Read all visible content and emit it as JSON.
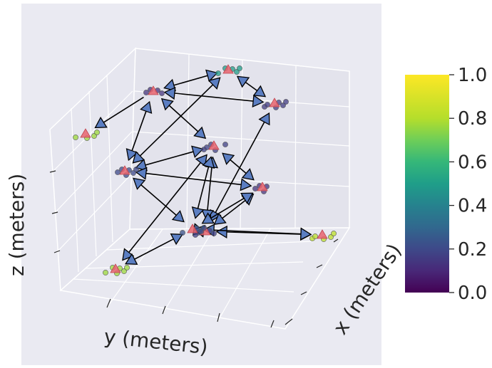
{
  "chart_data": {
    "type": "scatter",
    "projection": "3d",
    "style": "seaborn-darkgrid",
    "grid": true,
    "xlabel": "x (meters)",
    "ylabel": "y (meters)",
    "zlabel": "z (meters)",
    "colorbar": {
      "colormap": "viridis",
      "range": [
        0.0,
        1.0
      ],
      "ticks": [
        "0.0",
        "0.2",
        "0.4",
        "0.6",
        "0.8",
        "1.0"
      ]
    },
    "nodes": [
      {
        "id": "A",
        "value": 0.15
      },
      {
        "id": "B",
        "value": 0.55
      },
      {
        "id": "C",
        "value": 0.18
      },
      {
        "id": "D",
        "value": 0.85
      },
      {
        "id": "E",
        "value": 0.2
      },
      {
        "id": "F",
        "value": 0.22
      },
      {
        "id": "G",
        "value": 0.15
      },
      {
        "id": "H",
        "value": 0.2
      },
      {
        "id": "I",
        "value": 0.85
      },
      {
        "id": "J",
        "value": 0.25
      },
      {
        "id": "K",
        "value": 0.9
      }
    ],
    "edges": [
      {
        "from": "A",
        "to": "B",
        "bidirectional": true
      },
      {
        "from": "A",
        "to": "C",
        "bidirectional": true
      },
      {
        "from": "B",
        "to": "C",
        "bidirectional": true
      },
      {
        "from": "A",
        "to": "D",
        "bidirectional": false
      },
      {
        "from": "A",
        "to": "E",
        "bidirectional": true
      },
      {
        "from": "A",
        "to": "F",
        "bidirectional": true
      },
      {
        "from": "B",
        "to": "F",
        "bidirectional": true
      },
      {
        "from": "C",
        "to": "H",
        "bidirectional": true
      },
      {
        "from": "E",
        "to": "F",
        "bidirectional": true
      },
      {
        "from": "E",
        "to": "G",
        "bidirectional": true
      },
      {
        "from": "E",
        "to": "H",
        "bidirectional": true
      },
      {
        "from": "E",
        "to": "I",
        "bidirectional": true
      },
      {
        "from": "E",
        "to": "J",
        "bidirectional": true
      },
      {
        "from": "F",
        "to": "G",
        "bidirectional": true
      },
      {
        "from": "F",
        "to": "J",
        "bidirectional": true
      },
      {
        "from": "G",
        "to": "H",
        "bidirectional": true
      },
      {
        "from": "G",
        "to": "J",
        "bidirectional": true
      },
      {
        "from": "H",
        "to": "J",
        "bidirectional": true
      },
      {
        "from": "H",
        "to": "K",
        "bidirectional": true
      },
      {
        "from": "I",
        "to": "J",
        "bidirectional": true
      },
      {
        "from": "J",
        "to": "K",
        "bidirectional": true
      }
    ]
  }
}
